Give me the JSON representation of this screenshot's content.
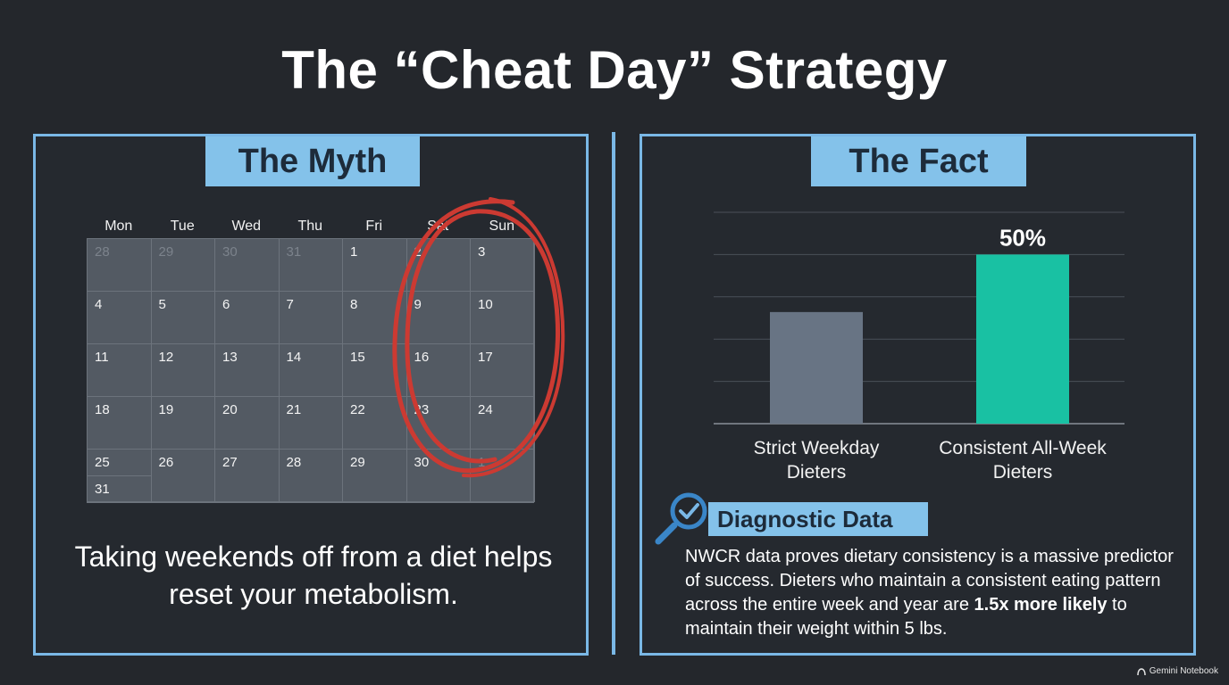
{
  "title": "The “Cheat Day” Strategy",
  "myth": {
    "header": "The Myth",
    "weekdays": [
      "Mon",
      "Tue",
      "Wed",
      "Thu",
      "Fri",
      "Sat",
      "Sun"
    ],
    "calendar": [
      [
        {
          "d": "28",
          "m": true
        },
        {
          "d": "29",
          "m": true
        },
        {
          "d": "30",
          "m": true
        },
        {
          "d": "31",
          "m": true
        },
        {
          "d": "1"
        },
        {
          "d": "2"
        },
        {
          "d": "3"
        }
      ],
      [
        {
          "d": "4"
        },
        {
          "d": "5"
        },
        {
          "d": "6"
        },
        {
          "d": "7"
        },
        {
          "d": "8"
        },
        {
          "d": "9"
        },
        {
          "d": "10"
        }
      ],
      [
        {
          "d": "11"
        },
        {
          "d": "12"
        },
        {
          "d": "13"
        },
        {
          "d": "14"
        },
        {
          "d": "15"
        },
        {
          "d": "16"
        },
        {
          "d": "17"
        }
      ],
      [
        {
          "d": "18"
        },
        {
          "d": "19"
        },
        {
          "d": "20"
        },
        {
          "d": "21"
        },
        {
          "d": "22"
        },
        {
          "d": "23"
        },
        {
          "d": "24"
        }
      ],
      [
        {
          "d": "25",
          "sub": "31"
        },
        {
          "d": "26"
        },
        {
          "d": "27"
        },
        {
          "d": "28"
        },
        {
          "d": "29"
        },
        {
          "d": "30"
        },
        {
          "d": "1",
          "m": true
        }
      ]
    ],
    "statement": "Taking weekends off from a diet helps reset your metabolism."
  },
  "fact": {
    "header": "The Fact",
    "chart_data": {
      "type": "bar",
      "categories": [
        "Strict Weekday Dieters",
        "Consistent All-Week Dieters"
      ],
      "values": [
        33,
        50
      ],
      "data_labels": [
        "",
        "50%"
      ],
      "colors": [
        "#687484",
        "#19c1a3"
      ],
      "ylim": [
        0,
        62.5
      ],
      "grid": true
    },
    "diagnostic": {
      "label": "Diagnostic Data",
      "text_before": "NWCR data proves dietary consistency is a massive predictor of success. Dieters who maintain a consistent eating pattern across the entire week and year are ",
      "text_bold": "1.5x more likely",
      "text_after": " to maintain their weight within 5 lbs."
    }
  },
  "colors": {
    "accent": "#7ab8e6",
    "header_bg": "#84c2ea",
    "circle": "#cc3a32",
    "bar_gray": "#687484",
    "bar_teal": "#19c1a3"
  },
  "watermark": "Gemini Notebook"
}
